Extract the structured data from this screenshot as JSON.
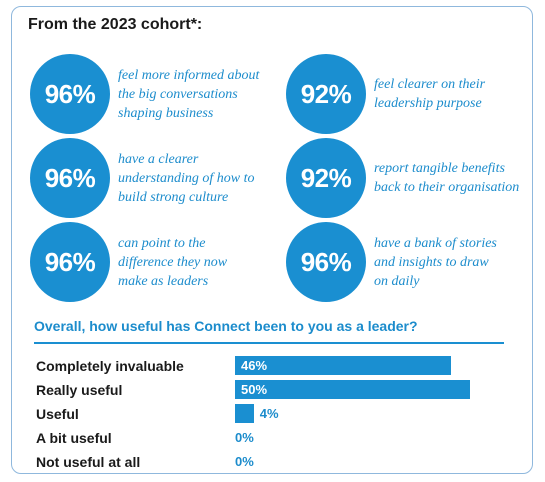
{
  "heading": "From the 2023 cohort*:",
  "colors": {
    "accent": "#1a8fd1",
    "text_accent": "#1c8ccc",
    "heading": "#1a1a1a"
  },
  "stats": [
    {
      "value": "96%",
      "text": "feel more informed about\nthe big conversations\nshaping business"
    },
    {
      "value": "92%",
      "text": "feel clearer on their\nleadership purpose"
    },
    {
      "value": "96%",
      "text": "have a clearer\nunderstanding of how to\nbuild strong culture"
    },
    {
      "value": "92%",
      "text": "report tangible benefits\nback to their organisation"
    },
    {
      "value": "96%",
      "text": "can point to the\ndifference they now\nmake as leaders"
    },
    {
      "value": "96%",
      "text": "have a bank of stories\nand insights to draw\non daily"
    }
  ],
  "chart_data": {
    "type": "bar",
    "orientation": "horizontal",
    "title": "Overall, how useful has Connect been to you as a leader?",
    "categories": [
      "Completely invaluable",
      "Really useful",
      "Useful",
      "A bit useful",
      "Not useful at all"
    ],
    "values": [
      46,
      50,
      4,
      0,
      0
    ],
    "value_labels": [
      "46%",
      "50%",
      "4%",
      "0%",
      "0%"
    ],
    "xlim": [
      0,
      100
    ],
    "grid": false,
    "legend": "none"
  }
}
